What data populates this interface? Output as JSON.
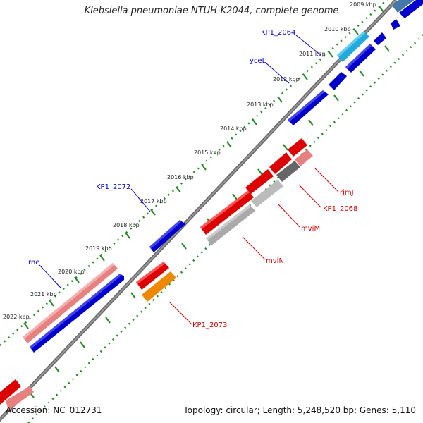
{
  "title": "Klebsiella pneumoniae NTUH-K2044, complete genome",
  "footer": {
    "accession": "Accession: NC_012731",
    "topology": "Topology: circular; Length: 5,248,520 bp; Genes: 5,110"
  },
  "ticks": [
    "2009 kbp",
    "2010 kbp",
    "2011 kbp",
    "2012 kbp",
    "2013 kbp",
    "2014 kbp",
    "2015 kbp",
    "2016 kbp",
    "2017 kbp",
    "2018 kbp",
    "2019 kbp",
    "2020 kbp",
    "2021 kbp",
    "2022 kbp"
  ],
  "gene_labels": {
    "KP1_2064": "KP1_2064",
    "yceL": "yceL",
    "KP1_2072": "KP1_2072",
    "rne": "rne",
    "rimJ": "rimJ",
    "KP1_2068": "KP1_2068",
    "mviM": "mviM",
    "mviN": "mviN",
    "KP1_2073": "KP1_2073"
  },
  "colors": {
    "blue": "#0000cc",
    "red": "#dd0000",
    "pink": "#e88080",
    "orange": "#ee8800",
    "gray": "#aaaaaa",
    "darkgray": "#666666",
    "cyan": "#22aadd",
    "steel": "#4477aa",
    "label_blue": "#0000cc",
    "label_red": "#cc0000",
    "tick_green": "#228822",
    "axis": "#777777"
  }
}
